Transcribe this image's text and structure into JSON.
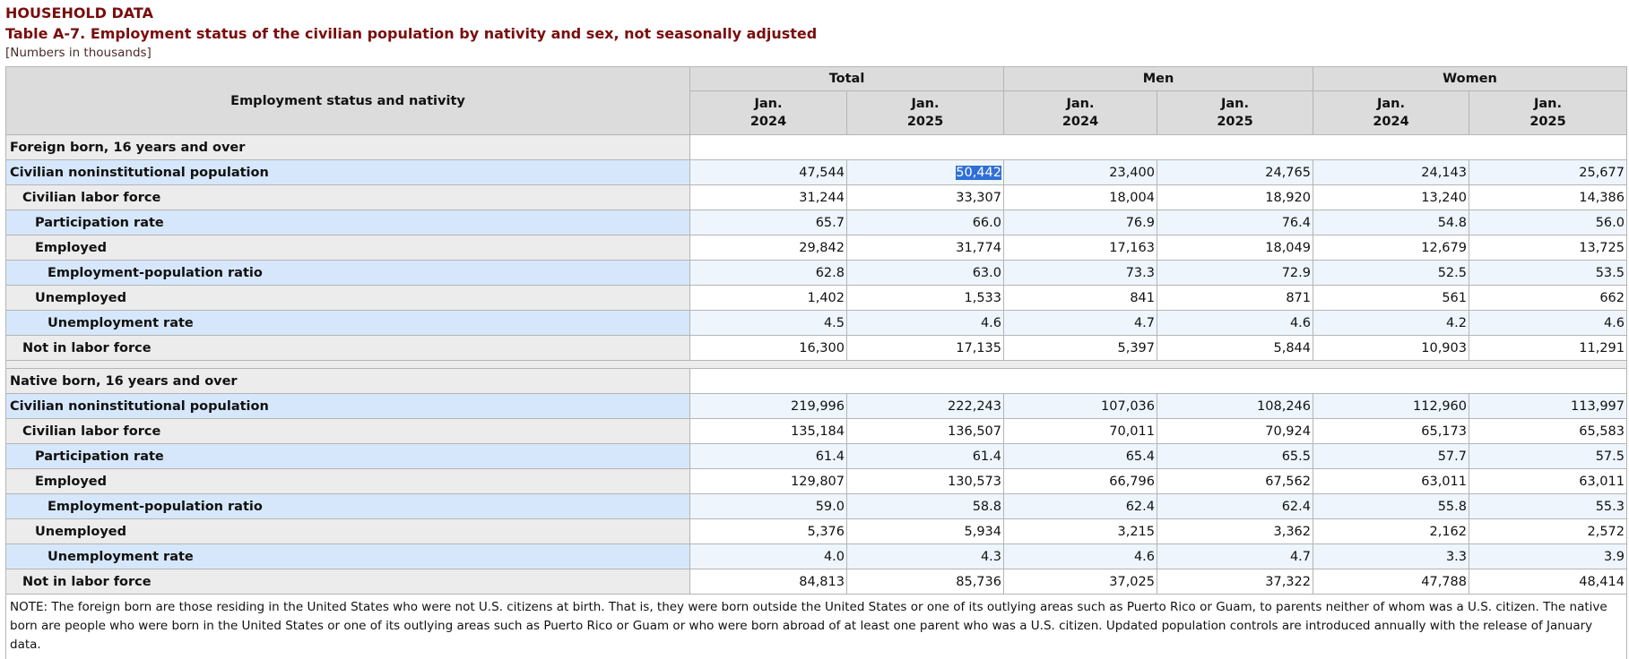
{
  "header": {
    "section_label": "HOUSEHOLD DATA",
    "title": "Table A-7. Employment status of the civilian population by nativity and sex, not seasonally adjusted",
    "subtitle": "[Numbers in thousands]"
  },
  "table": {
    "stub_header": "Employment status and nativity",
    "groups": [
      "Total",
      "Men",
      "Women"
    ],
    "columns": [
      [
        "Jan.",
        "2024"
      ],
      [
        "Jan.",
        "2025"
      ],
      [
        "Jan.",
        "2024"
      ],
      [
        "Jan.",
        "2025"
      ],
      [
        "Jan.",
        "2024"
      ],
      [
        "Jan.",
        "2025"
      ]
    ],
    "sections": [
      {
        "title": "Foreign born, 16 years and over",
        "rows": [
          {
            "label": "Civilian noninstitutional population",
            "values": [
              "47,544",
              "50,442",
              "23,400",
              "24,765",
              "24,143",
              "25,677"
            ]
          },
          {
            "label": "Civilian labor force",
            "values": [
              "31,244",
              "33,307",
              "18,004",
              "18,920",
              "13,240",
              "14,386"
            ]
          },
          {
            "label": "Participation rate",
            "values": [
              "65.7",
              "66.0",
              "76.9",
              "76.4",
              "54.8",
              "56.0"
            ]
          },
          {
            "label": "Employed",
            "values": [
              "29,842",
              "31,774",
              "17,163",
              "18,049",
              "12,679",
              "13,725"
            ]
          },
          {
            "label": "Employment-population ratio",
            "values": [
              "62.8",
              "63.0",
              "73.3",
              "72.9",
              "52.5",
              "53.5"
            ]
          },
          {
            "label": "Unemployed",
            "values": [
              "1,402",
              "1,533",
              "841",
              "871",
              "561",
              "662"
            ]
          },
          {
            "label": "Unemployment rate",
            "values": [
              "4.5",
              "4.6",
              "4.7",
              "4.6",
              "4.2",
              "4.6"
            ]
          },
          {
            "label": "Not in labor force",
            "values": [
              "16,300",
              "17,135",
              "5,397",
              "5,844",
              "10,903",
              "11,291"
            ]
          }
        ]
      },
      {
        "title": "Native born, 16 years and over",
        "rows": [
          {
            "label": "Civilian noninstitutional population",
            "values": [
              "219,996",
              "222,243",
              "107,036",
              "108,246",
              "112,960",
              "113,997"
            ]
          },
          {
            "label": "Civilian labor force",
            "values": [
              "135,184",
              "136,507",
              "70,011",
              "70,924",
              "65,173",
              "65,583"
            ]
          },
          {
            "label": "Participation rate",
            "values": [
              "61.4",
              "61.4",
              "65.4",
              "65.5",
              "57.7",
              "57.5"
            ]
          },
          {
            "label": "Employed",
            "values": [
              "129,807",
              "130,573",
              "66,796",
              "67,562",
              "63,011",
              "63,011"
            ]
          },
          {
            "label": "Employment-population ratio",
            "values": [
              "59.0",
              "58.8",
              "62.4",
              "62.4",
              "55.8",
              "55.3"
            ]
          },
          {
            "label": "Unemployed",
            "values": [
              "5,376",
              "5,934",
              "3,215",
              "3,362",
              "2,162",
              "2,572"
            ]
          },
          {
            "label": "Unemployment rate",
            "values": [
              "4.0",
              "4.3",
              "4.6",
              "4.7",
              "3.3",
              "3.9"
            ]
          },
          {
            "label": "Not in labor force",
            "values": [
              "84,813",
              "85,736",
              "37,025",
              "37,322",
              "47,788",
              "48,414"
            ]
          }
        ]
      }
    ],
    "note": "NOTE: The foreign born are those residing in the United States who were not U.S. citizens at birth. That is, they were born outside the United States or one of its outlying areas such as Puerto Rico or Guam, to parents neither of whom was a U.S. citizen. The native born are people who were born in the United States or one of its outlying areas such as Puerto Rico or Guam or who were born abroad of at least one parent who was a U.S. citizen. Updated population controls are introduced annually with the release of January data."
  }
}
